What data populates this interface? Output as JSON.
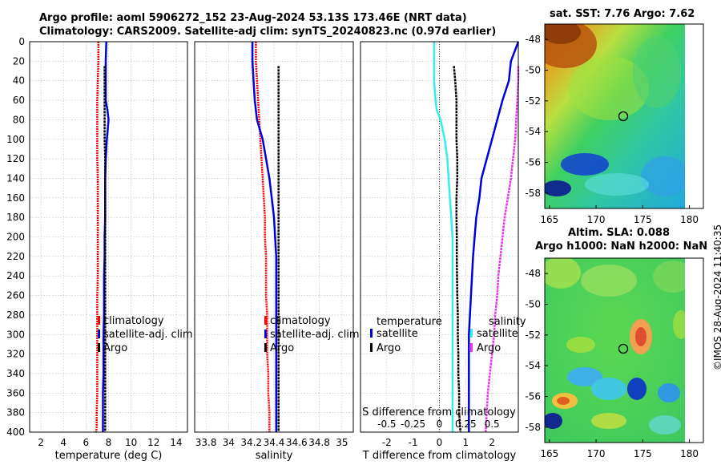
{
  "title": {
    "line1": "Argo profile: aoml 5906272_152 23-Aug-2024 53.13S 173.46E (NRT data)",
    "line2": "Climatology: CARS2009. Satellite-adj clim: synTS_20240823.nc (0.97d earlier)"
  },
  "copyright": "©IMOS 28-Aug-2024 11:40:35",
  "colors": {
    "climatology": "#ff0000",
    "satellite": "#0000dd",
    "argo": "#000000",
    "t_satellite": "#33eeee",
    "s_satellite": "#ee33ee",
    "grid": "#b9b9b9"
  },
  "chart_data": [
    {
      "type": "line",
      "name": "temperature-profile",
      "xlabel": "temperature (deg C)",
      "ylabel": "depth",
      "xlim": [
        1,
        15
      ],
      "ylim": [
        400,
        0
      ],
      "xticks": [
        2,
        4,
        6,
        8,
        10,
        12,
        14
      ],
      "yticks": [
        0,
        20,
        40,
        60,
        80,
        100,
        120,
        140,
        160,
        180,
        200,
        220,
        240,
        260,
        280,
        300,
        320,
        340,
        360,
        380,
        400
      ],
      "grid": true,
      "legend": {
        "position": "lower-right",
        "entries": [
          "climatology",
          "satellite-adj. clim",
          "Argo"
        ]
      },
      "series": [
        {
          "name": "climatology",
          "color": "#ff0000",
          "x": [
            7.1,
            7.1,
            7.05,
            7.0,
            7.0,
            7.0,
            7.0,
            7.05,
            7.05,
            7.05,
            7.05,
            7.05,
            7.05,
            7.0,
            7.0,
            7.0,
            7.0,
            7.0,
            7.0,
            6.95,
            6.95,
            6.9
          ],
          "y": [
            0,
            20,
            40,
            60,
            80,
            100,
            120,
            140,
            160,
            180,
            200,
            220,
            240,
            260,
            280,
            300,
            320,
            340,
            360,
            380,
            395,
            400
          ]
        },
        {
          "name": "satellite-adj. clim",
          "color": "#0000dd",
          "x": [
            7.8,
            7.75,
            7.75,
            7.75,
            7.9,
            8.0,
            7.85,
            7.75,
            7.7,
            7.7,
            7.7,
            7.65,
            7.65,
            7.6,
            7.6,
            7.6,
            7.55,
            7.55,
            7.55,
            7.5,
            7.5
          ],
          "y": [
            0,
            20,
            40,
            60,
            70,
            80,
            100,
            120,
            140,
            160,
            180,
            200,
            220,
            240,
            260,
            280,
            300,
            320,
            340,
            360,
            400
          ]
        },
        {
          "name": "Argo",
          "color": "#000000",
          "x": [
            7.65,
            7.65,
            7.65,
            7.65,
            7.65,
            7.7,
            7.7,
            7.7,
            7.7,
            7.7,
            7.7,
            7.7,
            7.7,
            7.7,
            7.7,
            7.7,
            7.7,
            7.7,
            7.7,
            7.7
          ],
          "y": [
            25,
            40,
            60,
            80,
            100,
            120,
            140,
            160,
            180,
            200,
            220,
            240,
            260,
            280,
            300,
            320,
            340,
            360,
            380,
            400
          ]
        }
      ]
    },
    {
      "type": "line",
      "name": "salinity-profile",
      "xlabel": "salinity",
      "xlim": [
        33.7,
        35.1
      ],
      "ylim": [
        400,
        0
      ],
      "xticks": [
        33.8,
        34,
        34.2,
        34.4,
        34.6,
        34.8,
        35
      ],
      "grid": true,
      "legend": {
        "position": "lower-right",
        "entries": [
          "climatology",
          "satellite-adj. clim",
          "Argo"
        ]
      },
      "series": [
        {
          "name": "climatology",
          "color": "#ff0000",
          "x": [
            34.24,
            34.24,
            34.25,
            34.26,
            34.27,
            34.28,
            34.29,
            34.3,
            34.31,
            34.32,
            34.32,
            34.33,
            34.33,
            34.33,
            34.34,
            34.34,
            34.34,
            34.35,
            34.35,
            34.36,
            34.36
          ],
          "y": [
            0,
            20,
            40,
            60,
            80,
            100,
            120,
            140,
            160,
            180,
            200,
            220,
            240,
            260,
            280,
            300,
            320,
            340,
            360,
            380,
            400
          ]
        },
        {
          "name": "satellite-adj. clim",
          "color": "#0000dd",
          "x": [
            34.21,
            34.21,
            34.22,
            34.23,
            34.25,
            34.3,
            34.33,
            34.36,
            34.38,
            34.4,
            34.41,
            34.42,
            34.42,
            34.42,
            34.42,
            34.42,
            34.42,
            34.42,
            34.42,
            34.42
          ],
          "y": [
            0,
            20,
            40,
            60,
            80,
            100,
            120,
            140,
            160,
            180,
            200,
            220,
            240,
            260,
            280,
            300,
            320,
            340,
            360,
            400
          ]
        },
        {
          "name": "Argo",
          "color": "#000000",
          "x": [
            34.44,
            34.44,
            34.44,
            34.44,
            34.44,
            34.44,
            34.44,
            34.44,
            34.44,
            34.44,
            34.44,
            34.44,
            34.44,
            34.44,
            34.44,
            34.44,
            34.44,
            34.44,
            34.44
          ],
          "y": [
            25,
            40,
            60,
            80,
            100,
            120,
            140,
            160,
            180,
            200,
            220,
            240,
            260,
            280,
            300,
            320,
            340,
            360,
            400
          ]
        }
      ]
    },
    {
      "type": "line",
      "name": "difference-profile",
      "xlabel": "T difference from climatology",
      "xlabel_top": "S difference from climatology",
      "xlim": [
        -3,
        3
      ],
      "ylim": [
        400,
        0
      ],
      "xticks": [
        -2,
        -1,
        0,
        1,
        2
      ],
      "xticks_top": [
        -0.5,
        -0.25,
        0,
        0.25,
        0.5
      ],
      "xticks_top_labels": [
        "-0.5",
        "-0.25",
        "0",
        "0.25",
        "0.5"
      ],
      "grid": true,
      "legend": {
        "position": "lower",
        "group_titles": [
          "temperature",
          "salinity"
        ],
        "entries": [
          "satellite",
          "Argo",
          "satellite",
          "Argo"
        ]
      },
      "series": [
        {
          "name": "temperature satellite",
          "color": "#33eeee",
          "x": [
            -0.2,
            -0.2,
            -0.2,
            -0.15,
            -0.1,
            0.05,
            0.2,
            0.3,
            0.35,
            0.4,
            0.45,
            0.5,
            0.5,
            0.5,
            0.5,
            0.5,
            0.5,
            0.5,
            0.5,
            0.5,
            0.5
          ],
          "y": [
            0,
            20,
            40,
            60,
            70,
            80,
            100,
            120,
            140,
            160,
            180,
            200,
            220,
            240,
            260,
            280,
            300,
            320,
            340,
            360,
            400
          ]
        },
        {
          "name": "temperature Argo",
          "color": "#000000",
          "x": [
            0.55,
            0.6,
            0.65,
            0.65,
            0.65,
            0.68,
            0.68,
            0.65,
            0.65,
            0.66,
            0.66,
            0.67,
            0.68,
            0.7,
            0.7,
            0.72,
            0.72,
            0.75,
            0.75,
            0.8
          ],
          "y": [
            25,
            40,
            60,
            80,
            100,
            120,
            140,
            160,
            180,
            200,
            220,
            240,
            260,
            280,
            300,
            320,
            340,
            360,
            380,
            400
          ]
        },
        {
          "name": "salinity satellite",
          "color": "#0000dd",
          "x": [
            0.75,
            0.68,
            0.66,
            0.6,
            0.55,
            0.5,
            0.45,
            0.4,
            0.38,
            0.35,
            0.32,
            0.3,
            0.28,
            0.28,
            0.28,
            0.28
          ],
          "y": [
            0,
            20,
            40,
            60,
            80,
            100,
            120,
            140,
            160,
            180,
            220,
            260,
            300,
            340,
            380,
            400
          ]
        },
        {
          "name": "salinity Argo",
          "color": "#ee33ee",
          "x": [
            0.75,
            0.75,
            0.74,
            0.73,
            0.72,
            0.7,
            0.68,
            0.65,
            0.62,
            0.6,
            0.58,
            0.56,
            0.55,
            0.53,
            0.52,
            0.5,
            0.48,
            0.46,
            0.44
          ],
          "y": [
            25,
            40,
            60,
            80,
            100,
            120,
            140,
            160,
            180,
            200,
            220,
            240,
            260,
            280,
            300,
            320,
            340,
            360,
            400
          ]
        }
      ]
    },
    {
      "type": "heatmap",
      "name": "sst-map",
      "title": "sat. SST: 7.76 Argo: 7.62",
      "xlim": [
        164.5,
        181.5
      ],
      "ylim": [
        -59,
        -47
      ],
      "xticks": [
        165,
        170,
        175,
        180
      ],
      "yticks": [
        -48,
        -50,
        -52,
        -54,
        -56,
        -58
      ],
      "marker": {
        "lon": 173.46,
        "lat": -53.13
      }
    },
    {
      "type": "heatmap",
      "name": "sla-map",
      "title_lines": [
        "Altim. SLA: 0.088",
        "Argo h1000: NaN h2000: NaN"
      ],
      "xlim": [
        164.5,
        181.5
      ],
      "ylim": [
        -59,
        -47
      ],
      "xticks": [
        165,
        170,
        175,
        180
      ],
      "yticks": [
        -48,
        -50,
        -52,
        -54,
        -56,
        -58
      ],
      "marker": {
        "lon": 173.46,
        "lat": -53.13
      }
    }
  ]
}
